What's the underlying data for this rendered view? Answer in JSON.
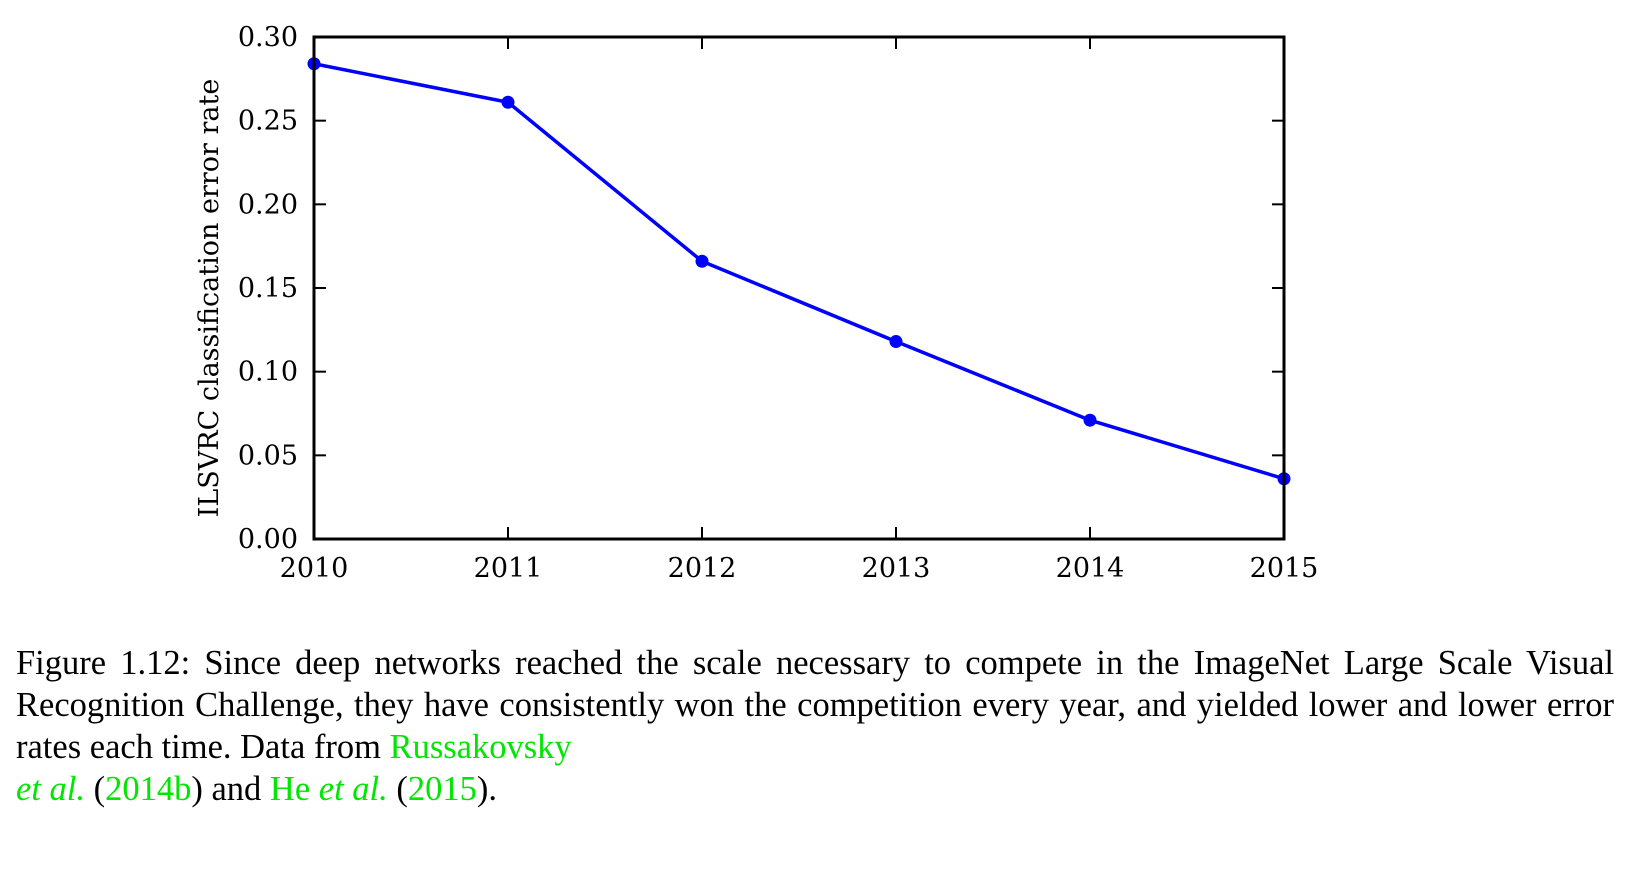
{
  "chart_data": {
    "type": "line",
    "x": [
      "2010",
      "2011",
      "2012",
      "2013",
      "2014",
      "2015"
    ],
    "series": [
      {
        "values": [
          0.284,
          0.261,
          0.166,
          0.118,
          0.071,
          0.036
        ],
        "color": "#0000ff"
      }
    ],
    "xlim": [
      2010,
      2015
    ],
    "ylim": [
      0.0,
      0.3
    ],
    "yticks": [
      "0.00",
      "0.05",
      "0.10",
      "0.15",
      "0.20",
      "0.25",
      "0.30"
    ],
    "xlabel": "",
    "ylabel": "ILSVRC classification error rate",
    "grid": false
  },
  "caption": {
    "prefix": "Figure 1.12: Since deep networks reached the scale necessary to compete in the ImageNet Large Scale Visual Recognition Challenge, they have consistently won the competition every year, and yielded lower and lower error rates each time. Data from ",
    "cite1_name": "Russakovsky",
    "cite1_etal": "et al.",
    "paren_open_1": " (",
    "cite1_year": "2014b",
    "mid": ") and ",
    "cite2_name": "He",
    "cite2_etal": "et al.",
    "paren_open_2": " (",
    "cite2_year": "2015",
    "suffix": ")."
  }
}
